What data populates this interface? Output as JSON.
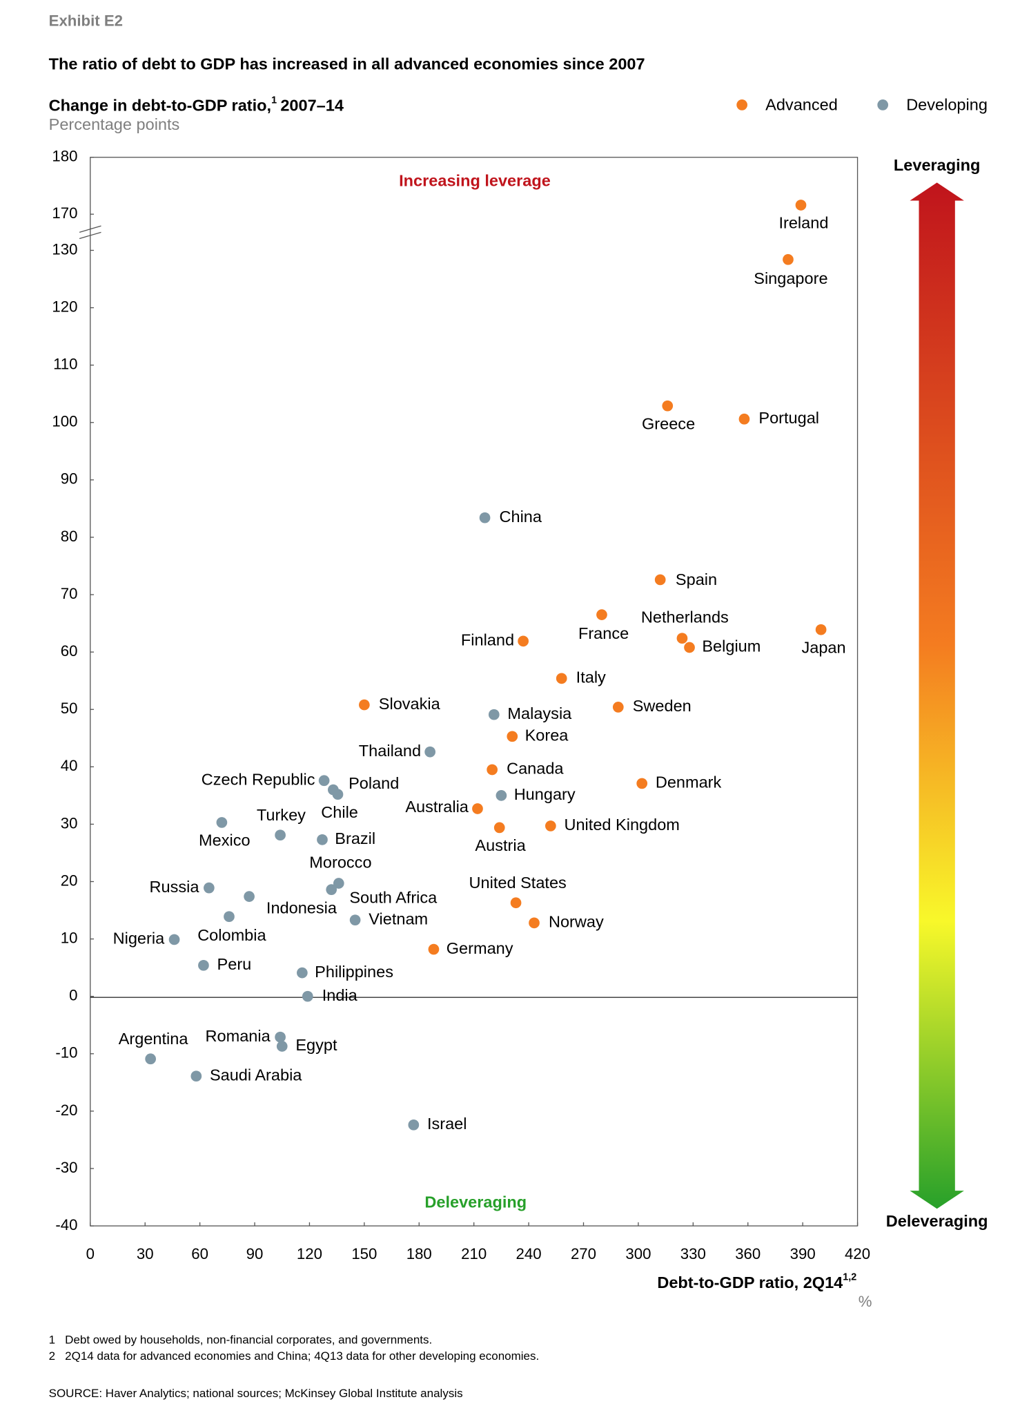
{
  "header": {
    "exhibit": "Exhibit E2",
    "title": "The ratio of debt to GDP has increased in all advanced economies since 2007"
  },
  "chart_data": {
    "type": "scatter",
    "y_label": "Change in debt-to-GDP ratio,",
    "y_label_sup": "1",
    "y_label_period": "2007–14",
    "y_unit": "Percentage points",
    "x_label": "Debt-to-GDP ratio, 2Q14",
    "x_label_sup": "1,2",
    "x_unit": "%",
    "top_annotation": "Increasing leverage",
    "bottom_annotation": "Deleveraging",
    "arrow_top": "Leveraging",
    "arrow_bottom": "Deleveraging",
    "xlim": [
      0,
      420
    ],
    "xticks": [
      0,
      30,
      60,
      90,
      120,
      150,
      180,
      210,
      240,
      270,
      300,
      330,
      360,
      390,
      420
    ],
    "ylim": [
      -40,
      180
    ],
    "y_break": [
      130,
      170
    ],
    "yticks": [
      -40,
      -30,
      -20,
      -10,
      0,
      10,
      20,
      30,
      40,
      50,
      60,
      70,
      80,
      90,
      100,
      110,
      120,
      130,
      170,
      180
    ],
    "legend": "top-right",
    "series": [
      {
        "name": "Advanced",
        "color": "#f47c20",
        "labels": [
          "Ireland",
          "Singapore",
          "Greece",
          "Portugal",
          "Spain",
          "France",
          "Netherlands",
          "Belgium",
          "Japan",
          "Finland",
          "Italy",
          "Sweden",
          "Slovakia",
          "Korea",
          "Canada",
          "Denmark",
          "Australia",
          "Austria",
          "United Kingdom",
          "United States",
          "Norway",
          "Germany"
        ],
        "x": [
          389,
          382,
          316,
          358,
          312,
          280,
          324,
          328,
          400,
          237,
          258,
          289,
          150,
          231,
          220,
          302,
          212,
          224,
          252,
          233,
          243,
          188
        ],
        "values": [
          171.6,
          128.4,
          102.9,
          100.6,
          72.6,
          66.5,
          62.4,
          60.8,
          63.9,
          61.9,
          55.4,
          50.4,
          50.8,
          45.3,
          39.5,
          37.1,
          32.7,
          29.4,
          29.7,
          16.3,
          12.8,
          8.2
        ]
      },
      {
        "name": "Developing",
        "color": "#7f98a6",
        "labels": [
          "China",
          "Malaysia",
          "Thailand",
          "Czech Republic",
          "Poland",
          "Chile",
          "Hungary",
          "Mexico",
          "Turkey",
          "Brazil",
          "Morocco",
          "South Africa",
          "Russia",
          "Indonesia",
          "Colombia",
          "Vietnam",
          "Nigeria",
          "Peru",
          "Philippines",
          "India",
          "Romania",
          "Egypt",
          "Argentina",
          "Saudi Arabia",
          "Israel"
        ],
        "x": [
          216,
          221,
          186,
          128,
          133,
          135.5,
          225,
          72,
          104,
          127,
          136,
          132,
          65,
          87,
          76,
          145,
          46,
          62,
          116,
          119,
          104,
          105,
          33,
          58,
          177
        ],
        "values": [
          83.4,
          49.1,
          42.6,
          37.6,
          36.0,
          35.2,
          35.0,
          30.3,
          28.1,
          27.3,
          19.7,
          18.6,
          18.9,
          17.4,
          13.9,
          13.3,
          9.9,
          5.4,
          4.1,
          0,
          -7.1,
          -8.7,
          -10.9,
          -13.9,
          -22.4
        ]
      }
    ]
  },
  "footnotes": [
    {
      "number": "1",
      "text": "Debt owed by households, non-financial corporates, and governments."
    },
    {
      "number": "2",
      "text": "2Q14 data for advanced economies and China; 4Q13 data for other developing economies."
    }
  ],
  "source": "SOURCE:  Haver Analytics; national sources; McKinsey Global Institute analysis"
}
